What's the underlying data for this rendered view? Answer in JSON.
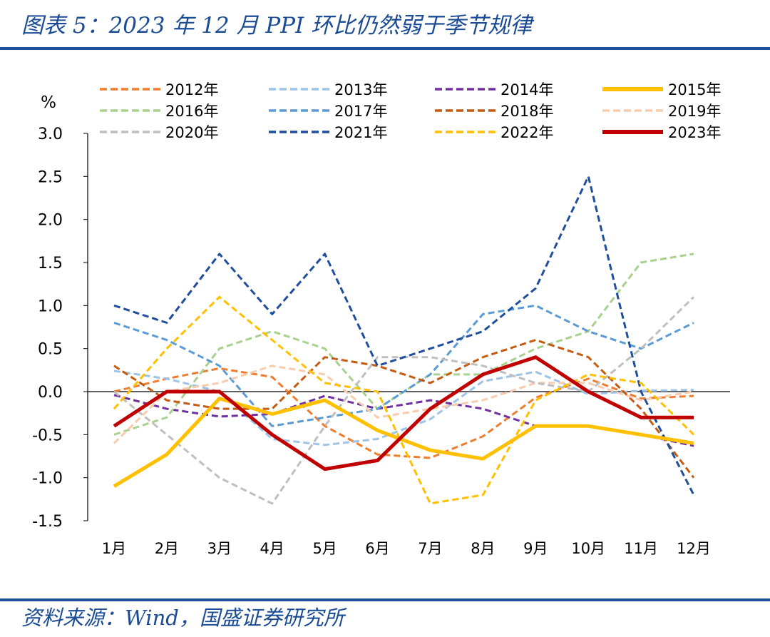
{
  "header": {
    "title": "图表 5：2023 年 12 月 PPI 环比仍然弱于季节规律"
  },
  "footer": {
    "source": "资料来源：Wind，国盛证券研究所"
  },
  "chart_data": {
    "type": "line",
    "ylabel": "%",
    "ylim": [
      -1.5,
      3.0
    ],
    "yticks": [
      "3.0",
      "2.5",
      "2.0",
      "1.5",
      "1.0",
      "0.5",
      "0.0",
      "-0.5",
      "-1.0",
      "-1.5"
    ],
    "ytick_values": [
      3.0,
      2.5,
      2.0,
      1.5,
      1.0,
      0.5,
      0.0,
      -0.5,
      -1.0,
      -1.5
    ],
    "categories": [
      "1月",
      "2月",
      "3月",
      "4月",
      "5月",
      "6月",
      "7月",
      "8月",
      "9月",
      "10月",
      "11月",
      "12月"
    ],
    "legend_position": "top",
    "series": [
      {
        "name": "2012年",
        "color": "#ed7d31",
        "style": "dashed",
        "values": [
          0.0,
          0.15,
          0.27,
          0.17,
          -0.4,
          -0.73,
          -0.77,
          -0.52,
          -0.07,
          0.15,
          -0.08,
          -0.05
        ]
      },
      {
        "name": "2013年",
        "color": "#9dc3e6",
        "style": "dashed",
        "values": [
          0.24,
          0.15,
          0.0,
          -0.55,
          -0.62,
          -0.55,
          -0.32,
          0.12,
          0.23,
          -0.03,
          0.01,
          0.02
        ]
      },
      {
        "name": "2014年",
        "color": "#7030a0",
        "style": "dashed",
        "values": [
          -0.04,
          -0.2,
          -0.29,
          -0.26,
          -0.05,
          -0.2,
          -0.1,
          -0.2,
          -0.4,
          -0.4,
          -0.5,
          -0.63
        ]
      },
      {
        "name": "2015年",
        "color": "#ffc000",
        "style": "solid-bold",
        "values": [
          -1.1,
          -0.73,
          -0.08,
          -0.26,
          -0.1,
          -0.45,
          -0.68,
          -0.78,
          -0.4,
          -0.4,
          -0.5,
          -0.6
        ]
      },
      {
        "name": "2016年",
        "color": "#a9d18e",
        "style": "dashed",
        "values": [
          -0.5,
          -0.3,
          0.5,
          0.7,
          0.5,
          -0.2,
          0.2,
          0.2,
          0.5,
          0.7,
          1.5,
          1.6
        ]
      },
      {
        "name": "2017年",
        "color": "#5b9bd5",
        "style": "dashed",
        "values": [
          0.8,
          0.6,
          0.3,
          -0.4,
          -0.3,
          -0.2,
          0.2,
          0.9,
          1.0,
          0.7,
          0.5,
          0.8
        ]
      },
      {
        "name": "2018年",
        "color": "#c55a11",
        "style": "dashed",
        "values": [
          0.3,
          -0.1,
          -0.2,
          -0.2,
          0.4,
          0.3,
          0.1,
          0.4,
          0.6,
          0.4,
          -0.2,
          -1.0
        ]
      },
      {
        "name": "2019年",
        "color": "#f8cbad",
        "style": "dashed",
        "values": [
          -0.6,
          0.0,
          0.1,
          0.3,
          0.2,
          -0.3,
          -0.2,
          -0.1,
          0.1,
          0.1,
          -0.1,
          0.0
        ]
      },
      {
        "name": "2020年",
        "color": "#bfbfbf",
        "style": "dashed",
        "values": [
          0.0,
          -0.5,
          -1.0,
          -1.3,
          -0.4,
          0.4,
          0.4,
          0.3,
          0.1,
          0.0,
          0.5,
          1.1
        ]
      },
      {
        "name": "2021年",
        "color": "#1f4e9c",
        "style": "dashed",
        "values": [
          1.0,
          0.8,
          1.6,
          0.9,
          1.6,
          0.3,
          0.5,
          0.7,
          1.2,
          2.5,
          0.0,
          -1.2
        ]
      },
      {
        "name": "2022年",
        "color": "#ffc000",
        "style": "dashed",
        "values": [
          -0.2,
          0.5,
          1.1,
          0.6,
          0.1,
          0.0,
          -1.3,
          -1.2,
          -0.1,
          0.2,
          0.1,
          -0.5
        ]
      },
      {
        "name": "2023年",
        "color": "#c00000",
        "style": "solid-bold",
        "values": [
          -0.4,
          0.0,
          0.0,
          -0.5,
          -0.9,
          -0.8,
          -0.2,
          0.2,
          0.4,
          0.0,
          -0.3,
          -0.3
        ]
      }
    ]
  }
}
